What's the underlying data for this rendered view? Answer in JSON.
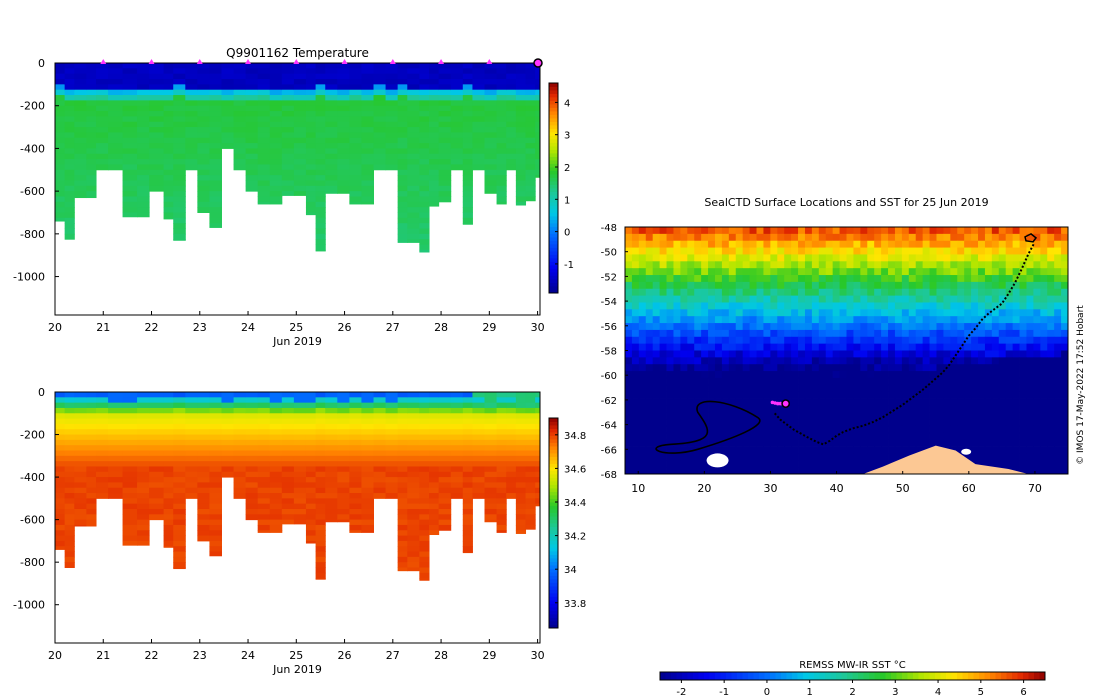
{
  "chart_data": [
    {
      "type": "heatmap",
      "id": "temperature",
      "title": "Q9901162  Temperature",
      "xlabel": "Jun 2019",
      "ylabel": "",
      "xlim": [
        20,
        30.05
      ],
      "ylim": [
        -1180,
        0
      ],
      "xticks": [
        "20",
        "21",
        "22",
        "23",
        "24",
        "25",
        "26",
        "27",
        "28",
        "29",
        "30"
      ],
      "yticks": [
        "0",
        "-200",
        "-400",
        "-600",
        "-800",
        "-1000"
      ],
      "colorbar": {
        "range": [
          -1.9,
          4.6
        ],
        "ticks": [
          "-1",
          "0",
          "1",
          "2",
          "3",
          "4"
        ]
      },
      "profile_days": [
        20.0,
        20.2,
        20.4,
        20.65,
        20.85,
        21.1,
        21.4,
        21.7,
        21.95,
        22.25,
        22.45,
        22.7,
        22.95,
        23.2,
        23.45,
        23.7,
        23.95,
        24.2,
        24.45,
        24.7,
        24.95,
        25.2,
        25.4,
        25.6,
        25.85,
        26.1,
        26.35,
        26.6,
        26.85,
        27.1,
        27.3,
        27.55,
        27.75,
        27.95,
        28.2,
        28.45,
        28.65,
        28.9,
        29.15,
        29.35,
        29.55,
        29.75,
        29.95,
        30.05
      ],
      "profile_max_depth": [
        740,
        825,
        630,
        630,
        500,
        500,
        720,
        720,
        600,
        730,
        830,
        500,
        700,
        770,
        400,
        500,
        600,
        660,
        660,
        620,
        620,
        710,
        880,
        610,
        610,
        660,
        660,
        500,
        500,
        840,
        840,
        885,
        670,
        650,
        500,
        755,
        500,
        610,
        660,
        500,
        665,
        645,
        535,
        330
      ],
      "surface_temperature": -1.6,
      "subsurface_temperature": 1.7,
      "markers": {
        "days": [
          21,
          22,
          23,
          24,
          25,
          26,
          27,
          28,
          29
        ],
        "color": "#ff33ff"
      }
    },
    {
      "type": "heatmap",
      "id": "salinity",
      "title": "",
      "xlabel": "Jun 2019",
      "ylabel": "",
      "xlim": [
        20,
        30.05
      ],
      "ylim": [
        -1180,
        0
      ],
      "xticks": [
        "20",
        "21",
        "22",
        "23",
        "24",
        "25",
        "26",
        "27",
        "28",
        "29",
        "30"
      ],
      "yticks": [
        "0",
        "-200",
        "-400",
        "-600",
        "-800",
        "-1000"
      ],
      "colorbar": {
        "range": [
          33.65,
          34.9
        ],
        "ticks": [
          "33.8",
          "34",
          "34.2",
          "34.4",
          "34.6",
          "34.8"
        ]
      },
      "surface_salinity": 33.95,
      "deep_salinity": 34.78
    },
    {
      "type": "heatmap",
      "id": "sst-map",
      "title": "SealCTD Surface Locations and SST for 25 Jun 2019",
      "xlabel": "",
      "ylabel": "",
      "xlim": [
        8,
        75
      ],
      "ylim": [
        -68,
        -48
      ],
      "xticks": [
        "10",
        "20",
        "30",
        "40",
        "50",
        "60",
        "70"
      ],
      "yticks": [
        "-48",
        "-50",
        "-52",
        "-54",
        "-56",
        "-58",
        "-60",
        "-62",
        "-64",
        "-66",
        "-68"
      ],
      "sst_range": [
        -2.5,
        6.5
      ],
      "track": {
        "lon": [
          69.8,
          69.0,
          68.0,
          67.0,
          66.0,
          65.0,
          64.0,
          63.0,
          62.0,
          61.0,
          60.0,
          59.0,
          58.0,
          57.0,
          56.0,
          54.5,
          53.0,
          51.5,
          50.0,
          48.5,
          47.0,
          45.5,
          44.0,
          42.5,
          41.0,
          40.0,
          39.0,
          38.0,
          37.0,
          35.5,
          33.5,
          31.5,
          30.5
        ],
        "lat": [
          -49.4,
          -50.2,
          -51.4,
          -52.5,
          -53.4,
          -54.2,
          -54.6,
          -55.0,
          -55.5,
          -56.2,
          -56.8,
          -57.6,
          -58.4,
          -59.2,
          -59.8,
          -60.5,
          -61.2,
          -61.8,
          -62.4,
          -62.9,
          -63.4,
          -63.8,
          -64.1,
          -64.3,
          -64.6,
          -64.9,
          -65.3,
          -65.6,
          -65.4,
          -65.0,
          -64.4,
          -63.6,
          -63.0
        ],
        "color": "#000000"
      },
      "current_position": {
        "lon": 32.3,
        "lat": -62.3
      },
      "recent_positions": {
        "lon": [
          30.3,
          30.7,
          31.1,
          31.5,
          31.9
        ],
        "lat": [
          -62.2,
          -62.25,
          -62.3,
          -62.3,
          -62.35
        ]
      },
      "credit": "© IMOS 17-May-2022 17:52 Hobart"
    },
    {
      "type": "colorbar",
      "id": "sst-colorbar",
      "title": "REMSS MW-IR SST °C",
      "range": [
        -2.5,
        6.5
      ],
      "ticks": [
        "-2",
        "-1",
        "0",
        "1",
        "2",
        "3",
        "4",
        "5",
        "6"
      ]
    }
  ]
}
